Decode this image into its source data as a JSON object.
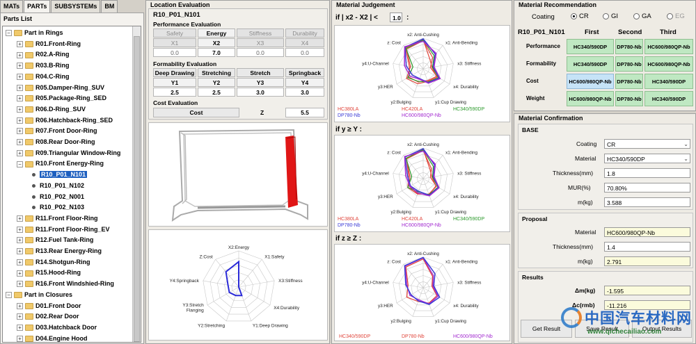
{
  "tabs": [
    "MATs",
    "PARTs",
    "SUBSYSTEMs",
    "BM"
  ],
  "parts_list": {
    "title": "Parts List",
    "items": [
      {
        "label": "Part in Rings",
        "type": "group"
      },
      {
        "label": "R01.Front-Ring",
        "type": "folder"
      },
      {
        "label": "R02.A-Ring",
        "type": "folder"
      },
      {
        "label": "R03.B-Ring",
        "type": "folder"
      },
      {
        "label": "R04.C-Ring",
        "type": "folder"
      },
      {
        "label": "R05.Damper-Ring_SUV",
        "type": "folder"
      },
      {
        "label": "R05.Package-Ring_SED",
        "type": "folder"
      },
      {
        "label": "R06.D-Ring_SUV",
        "type": "folder"
      },
      {
        "label": "R06.Hatchback-Ring_SED",
        "type": "folder"
      },
      {
        "label": "R07.Front Door-Ring",
        "type": "folder"
      },
      {
        "label": "R08.Rear Door-Ring",
        "type": "folder"
      },
      {
        "label": "R09.Triangular Window-Ring",
        "type": "folder"
      },
      {
        "label": "R10.Front Energy-Ring",
        "type": "folder-open"
      },
      {
        "label": "R10_P01_N101",
        "type": "leaf",
        "selected": true
      },
      {
        "label": "R10_P01_N102",
        "type": "leaf"
      },
      {
        "label": "R10_P02_N001",
        "type": "leaf"
      },
      {
        "label": "R10_P02_N103",
        "type": "leaf"
      },
      {
        "label": "R11.Front Floor-Ring",
        "type": "folder"
      },
      {
        "label": "R11.Front Floor-Ring_EV",
        "type": "folder"
      },
      {
        "label": "R12.Fuel Tank-Ring",
        "type": "folder"
      },
      {
        "label": "R13.Rear Energy-Ring",
        "type": "folder"
      },
      {
        "label": "R14.Shotgun-Ring",
        "type": "folder"
      },
      {
        "label": "R15.Hood-Ring",
        "type": "folder"
      },
      {
        "label": "R16.Front Windshied-Ring",
        "type": "folder"
      },
      {
        "label": "Part in Closures",
        "type": "group"
      },
      {
        "label": "D01.Front Door",
        "type": "folder"
      },
      {
        "label": "D02.Rear Door",
        "type": "folder"
      },
      {
        "label": "D03.Hatchback Door",
        "type": "folder"
      },
      {
        "label": "D04.Engine Hood",
        "type": "folder"
      }
    ]
  },
  "location": {
    "title": "Location  Evaluation",
    "part": "R10_P01_N101",
    "performance_title": "Performance Evaluation",
    "perf_headers": [
      "Safety",
      "Energy",
      "Stiffness",
      "Durability"
    ],
    "perf_keys": [
      "X1",
      "X2",
      "X3",
      "X4"
    ],
    "perf_values": [
      "0.0",
      "7.0",
      "0.0",
      "0.0"
    ],
    "form_title": "Formability Evaluation",
    "form_headers": [
      "Deep Drawing",
      "Stretching",
      "Stretch Flanging",
      "Springback"
    ],
    "form_keys": [
      "Y1",
      "Y2",
      "Y3",
      "Y4"
    ],
    "form_values": [
      "2.5",
      "2.5",
      "3.0",
      "3.0"
    ],
    "cost_title": "Cost Evaluation",
    "cost_label": "Cost",
    "z_label": "Z",
    "z_value": "5.5",
    "radar_axes": [
      "X2:Energy",
      "X1:Safety",
      "X3:Stiffness",
      "X4:Durability",
      "Y1:Deep Drawing",
      "Y2:Stretching",
      "Y3:Stretch\nFlanging",
      "Y4:Springback",
      "Z:Cost"
    ],
    "radar_values": [
      7.0,
      0.0,
      0.0,
      0.0,
      2.5,
      2.5,
      3.0,
      3.0,
      5.5
    ]
  },
  "judgement": {
    "title": "Material  Judgement",
    "cond1_prefix": "if | x2 - X2 | <",
    "cond1_value": "1.0",
    "cond1_suffix": ":",
    "cond2": "if  y ≥ Y :",
    "cond3": "if  z ≥ Z :",
    "axes": [
      "x2: Anti-Cushing",
      "x1: Anti-Bending",
      "x3: Stiffness",
      "x4: Durability",
      "y1:Cup Drawing",
      "y2:Bulging",
      "y3:HER",
      "y4:U-Channel",
      "z: Cost"
    ],
    "legend1": [
      {
        "name": "HC380LA",
        "color": "#e0463c"
      },
      {
        "name": "HC420LA",
        "color": "#e0463c"
      },
      {
        "name": "HC340/590DP",
        "color": "#2c9a2c"
      },
      {
        "name": "DP780-Nb",
        "color": "#3b3bd6"
      },
      {
        "name": "HC600/980QP-Nb",
        "color": "#a32bd0"
      }
    ],
    "legend2": [
      {
        "name": "HC380LA",
        "color": "#e0463c"
      },
      {
        "name": "HC420LA",
        "color": "#e0463c"
      },
      {
        "name": "HC340/590DP",
        "color": "#2c9a2c"
      },
      {
        "name": "DP780-Nb",
        "color": "#3b3bd6"
      },
      {
        "name": "HC600/980QP-Nb",
        "color": "#a32bd0"
      }
    ],
    "legend3": [
      {
        "name": "HC340/590DP",
        "color": "#e0463c"
      },
      {
        "name": "DP780-Nb",
        "color": "#e0463c"
      },
      {
        "name": "HC600/980QP-Nb",
        "color": "#a32bd0"
      }
    ]
  },
  "recommendation": {
    "title": "Material  Recommendation",
    "coating_label": "Coating",
    "coating_options": [
      "CR",
      "GI",
      "GA",
      "EG"
    ],
    "coating_selected": "CR",
    "part": "R10_P01_N101",
    "rank_headers": [
      "First",
      "Second",
      "Third"
    ],
    "rows": [
      {
        "label": "Performance",
        "cells": [
          "HC340/590DP",
          "DP780-Nb",
          "HC600/980QP-Nb"
        ]
      },
      {
        "label": "Formability",
        "cells": [
          "HC340/590DP",
          "DP780-Nb",
          "HC600/980QP-Nb"
        ]
      },
      {
        "label": "Cost",
        "cells": [
          "HC600/980QP-Nb",
          "DP780-Nb",
          "HC340/590DP"
        ]
      },
      {
        "label": "Weight",
        "cells": [
          "HC600/980QP-Nb",
          "DP780-Nb",
          "HC340/590DP"
        ]
      }
    ]
  },
  "confirmation": {
    "title": "Material  Confirmation",
    "base_title": "BASE",
    "coating_label": "Coating",
    "coating_value": "CR",
    "material_label": "Material",
    "material_value": "HC340/590DP",
    "thickness_label": "Thickness(mm)",
    "thickness_value": "1.8",
    "mur_label": "MUR(%)",
    "mur_value": "70.80%",
    "mass_label": "m(kg)",
    "mass_value": "3.588",
    "proposal_title": "Proposal",
    "p_material_label": "Material",
    "p_material_value": "HC600/980QP-Nb",
    "p_thickness_label": "Thickness(mm)",
    "p_thickness_value": "1.4",
    "p_mass_label": "m(kg)",
    "p_mass_value": "2.791",
    "results_title": "Results",
    "dm_label": "Δm(kg)",
    "dm_value": "-1.595",
    "dc_label": "Δc(rmb)",
    "dc_value": "-11.216",
    "btn_get": "Get Result",
    "btn_save": "Save Result",
    "btn_output": "Output Results"
  },
  "watermark": {
    "text": "中国汽车材料网",
    "url": "www.qichecailiao.com"
  }
}
